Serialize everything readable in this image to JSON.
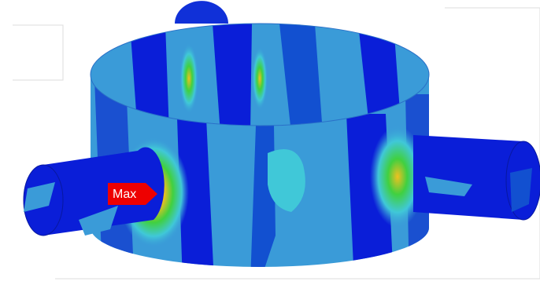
{
  "label": {
    "text": "Max"
  }
}
